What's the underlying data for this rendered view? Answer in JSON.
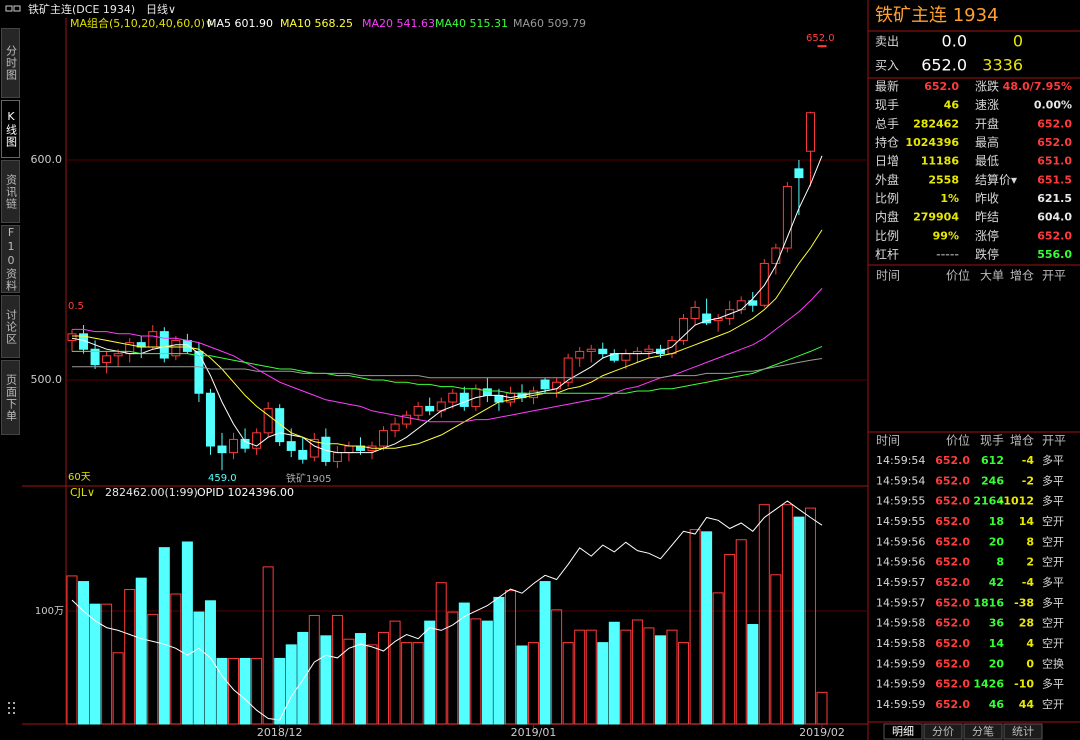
{
  "window": {
    "title": "铁矿主连(DCE 1934)",
    "period": "日线∨"
  },
  "side_tabs": [
    "分时图",
    "K线图",
    "资讯链",
    "F10资料",
    "讨论区",
    "页面下单"
  ],
  "chart_data": [
    {
      "type": "candlestick",
      "legend_title": "MA组合(5,10,20,40,60,0)∨",
      "up_color": "#ff3a3a",
      "down_color": "#54ffff",
      "ylim": [
        453.2,
        659.1
      ],
      "yticks": [
        {
          "value": 600,
          "label": "600.0"
        },
        {
          "value": 500,
          "label": "500.0"
        }
      ],
      "annotations": [
        "652.0",
        "459.0",
        "0.5",
        "60天",
        "铁矿1905"
      ],
      "open": [
        518,
        521,
        514,
        508,
        511,
        512,
        517,
        515,
        522,
        511,
        518,
        513,
        494,
        470,
        467,
        473,
        469,
        476,
        487,
        472,
        468,
        465,
        474,
        463,
        467,
        470,
        468,
        470,
        477,
        480,
        484,
        488,
        486,
        490,
        494,
        488,
        496,
        493,
        490,
        494,
        492,
        500,
        496,
        499,
        510,
        513,
        514,
        512,
        509,
        512,
        513,
        514,
        512,
        518,
        528,
        530,
        527,
        528,
        532,
        536,
        534,
        553,
        560,
        596,
        604,
        652
      ],
      "high": [
        523,
        525,
        518,
        513,
        514,
        519,
        520,
        525,
        524,
        520,
        521,
        517,
        496,
        476,
        476,
        478,
        478,
        490,
        489,
        478,
        474,
        476,
        478,
        470,
        472,
        474,
        472,
        479,
        483,
        486,
        490,
        492,
        492,
        496,
        497,
        498,
        501,
        496,
        497,
        498,
        497,
        501,
        501,
        512,
        515,
        516,
        517,
        514,
        514,
        515,
        516,
        516,
        520,
        530,
        536,
        537,
        530,
        536,
        538,
        540,
        555,
        562,
        590,
        600,
        622,
        652
      ],
      "low": [
        513,
        512,
        505,
        503,
        506,
        508,
        510,
        514,
        508,
        509,
        512,
        490,
        466,
        459,
        464,
        467,
        466,
        474,
        470,
        465,
        462,
        463,
        461,
        460,
        463,
        466,
        464,
        468,
        474,
        478,
        482,
        484,
        483,
        487,
        486,
        486,
        490,
        486,
        488,
        490,
        489,
        494,
        492,
        497,
        506,
        508,
        510,
        508,
        505,
        508,
        510,
        510,
        510,
        516,
        525,
        525,
        522,
        525,
        530,
        531,
        533,
        548,
        558,
        575,
        588,
        651
      ],
      "close": [
        521,
        514,
        507,
        511,
        512,
        517,
        515,
        522,
        510,
        518,
        513,
        494,
        470,
        467,
        473,
        469,
        476,
        487,
        472,
        468,
        464,
        473,
        463,
        467,
        470,
        468,
        470,
        477,
        480,
        484,
        488,
        486,
        490,
        494,
        488,
        496,
        493,
        490,
        494,
        492,
        495,
        496,
        499,
        510,
        513,
        514,
        512,
        509,
        512,
        513,
        514,
        512,
        518,
        528,
        533,
        526,
        528,
        532,
        536,
        534,
        553,
        560,
        588,
        592,
        621.5,
        652
      ],
      "series": [
        {
          "name": "MA5 601.90",
          "color": "#ffffff",
          "values": [
            519,
            518,
            516,
            514,
            513,
            512,
            512,
            514,
            515,
            516,
            516,
            512,
            502,
            490,
            480,
            472,
            470,
            474,
            476,
            475,
            474,
            470,
            468,
            467,
            467,
            467,
            467,
            469,
            471,
            474,
            478,
            482,
            486,
            488,
            490,
            492,
            493,
            493,
            492,
            493,
            494,
            495,
            496,
            500,
            503,
            506,
            510,
            512,
            512,
            512,
            512,
            513,
            515,
            520,
            525,
            527,
            528,
            530,
            532,
            537,
            543,
            552,
            565,
            578,
            589,
            601.9
          ]
        },
        {
          "name": "MA10 568.25",
          "color": "#ffff3c",
          "values": [
            520,
            520,
            519,
            518,
            517,
            516,
            515,
            515,
            515,
            515,
            515,
            514,
            510,
            505,
            499,
            493,
            488,
            484,
            480,
            476,
            474,
            472,
            471,
            471,
            470,
            470,
            469,
            469,
            469,
            470,
            471,
            473,
            475,
            478,
            481,
            484,
            487,
            490,
            491,
            492,
            493,
            494,
            494,
            496,
            497,
            499,
            502,
            504,
            506,
            508,
            510,
            511,
            512,
            514,
            516,
            518,
            520,
            522,
            525,
            528,
            532,
            537,
            545,
            553,
            560,
            568.25
          ]
        },
        {
          "name": "MA20 541.63",
          "color": "#ff3cff",
          "values": [
            523,
            523,
            522,
            522,
            521,
            521,
            520,
            520,
            519,
            519,
            518,
            517,
            515,
            513,
            511,
            508,
            505,
            502,
            499,
            497,
            495,
            493,
            491,
            490,
            489,
            488,
            486,
            485,
            484,
            483,
            482,
            481,
            481,
            481,
            481,
            482,
            482,
            483,
            484,
            485,
            486,
            487,
            488,
            489,
            490,
            491,
            492,
            494,
            496,
            497,
            499,
            501,
            502,
            504,
            506,
            508,
            510,
            512,
            514,
            516,
            519,
            523,
            527,
            531,
            536,
            541.63
          ]
        },
        {
          "name": "MA40 515.31",
          "color": "#3cff3c",
          "values": [
            513,
            513,
            513,
            513,
            513,
            513,
            512,
            512,
            512,
            512,
            512,
            511,
            511,
            510,
            509,
            508,
            507,
            506,
            505,
            505,
            504,
            503,
            503,
            502,
            502,
            501,
            500,
            500,
            499,
            499,
            498,
            498,
            497,
            497,
            496,
            496,
            495,
            495,
            494,
            494,
            494,
            494,
            494,
            494,
            494,
            494,
            494,
            494,
            494,
            495,
            495,
            496,
            496,
            497,
            498,
            499,
            500,
            501,
            502,
            503,
            505,
            507,
            509,
            511,
            513,
            515.31
          ]
        },
        {
          "name": "MA60 509.79",
          "color": "#9a9a9a",
          "values": [
            506,
            506,
            506,
            506,
            506,
            506,
            506,
            506,
            506,
            506,
            506,
            506,
            505,
            505,
            505,
            505,
            504,
            504,
            504,
            504,
            503,
            503,
            503,
            503,
            503,
            502,
            502,
            502,
            502,
            502,
            502,
            501,
            501,
            501,
            501,
            501,
            501,
            501,
            501,
            501,
            501,
            501,
            501,
            501,
            501,
            501,
            501,
            501,
            501,
            501,
            501,
            501,
            502,
            502,
            502,
            503,
            503,
            503,
            504,
            504,
            505,
            506,
            507,
            508,
            509,
            509.79
          ]
        }
      ]
    },
    {
      "type": "bar",
      "title": "CJL∨",
      "subtitle": "282462.00(1:99)",
      "categories": [
        null,
        null,
        null,
        null,
        null,
        null,
        null,
        null,
        null,
        null,
        null,
        null,
        null,
        null,
        null,
        null,
        null,
        null,
        "2018/12",
        null,
        null,
        null,
        null,
        null,
        null,
        null,
        null,
        null,
        null,
        null,
        null,
        null,
        null,
        null,
        null,
        null,
        null,
        null,
        null,
        null,
        "2019/01",
        null,
        null,
        null,
        null,
        null,
        null,
        null,
        null,
        null,
        null,
        null,
        null,
        null,
        null,
        null,
        null,
        null,
        null,
        null,
        null,
        null,
        null,
        null,
        null,
        "2019/02"
      ],
      "values": [
        1310000,
        1260000,
        1060000,
        1060000,
        630000,
        1190000,
        1290000,
        970000,
        1560000,
        1150000,
        1610000,
        990000,
        1090000,
        580000,
        580000,
        580000,
        580000,
        1390000,
        580000,
        700000,
        810000,
        960000,
        780000,
        960000,
        750000,
        800000,
        700000,
        810000,
        910000,
        720000,
        720000,
        910000,
        1250000,
        990000,
        1070000,
        930000,
        910000,
        1120000,
        1180000,
        690000,
        720000,
        1260000,
        1010000,
        720000,
        830000,
        830000,
        720000,
        900000,
        830000,
        920000,
        850000,
        780000,
        830000,
        720000,
        1720000,
        1700000,
        1160000,
        1500000,
        1630000,
        880000,
        1940000,
        1320000,
        1940000,
        1830000,
        1910000,
        280000
      ],
      "ylim": [
        0,
        2070000
      ],
      "yticks": [
        {
          "value": 1000000,
          "label": "100万"
        }
      ],
      "y2lim": [
        880000,
        1050000
      ],
      "series": [
        {
          "name": "OPID 1024396.00",
          "color": "#ffffff",
          "axis": "y2",
          "values": [
            970000,
            962000,
            955000,
            950000,
            948000,
            945000,
            942000,
            940000,
            938000,
            935000,
            930000,
            935000,
            928000,
            915000,
            905000,
            898000,
            890000,
            884000,
            883000,
            900000,
            912000,
            925000,
            930000,
            928000,
            935000,
            938000,
            936000,
            933000,
            940000,
            945000,
            942000,
            950000,
            948000,
            952000,
            958000,
            962000,
            966000,
            972000,
            978000,
            975000,
            982000,
            988000,
            985000,
            996000,
            1008000,
            1002000,
            1010000,
            1005000,
            1012000,
            1006000,
            1004000,
            1000000,
            1010000,
            1020000,
            1018000,
            1030000,
            1028000,
            1022000,
            1026000,
            1020000,
            1030000,
            1036000,
            1042000,
            1036000,
            1030000,
            1024396
          ]
        }
      ]
    }
  ],
  "quote": {
    "title": "铁矿主连 1934",
    "sell": {
      "label": "卖出",
      "price": "0.0",
      "volume": "0"
    },
    "buy": {
      "label": "买入",
      "price": "652.0",
      "volume": "3336"
    },
    "rows": [
      [
        "最新",
        "652.0",
        "涨跌",
        "48.0/7.95%"
      ],
      [
        "现手",
        "46",
        "速涨",
        "0.00%"
      ],
      [
        "总手",
        "282462",
        "开盘",
        "652.0"
      ],
      [
        "持仓",
        "1024396",
        "最高",
        "652.0"
      ],
      [
        "日增",
        "11186",
        "最低",
        "651.0"
      ],
      [
        "外盘",
        "2558",
        "结算价▾",
        "651.5"
      ],
      [
        "比例",
        "1%",
        "昨收",
        "621.5"
      ],
      [
        "内盘",
        "279904",
        "昨结",
        "604.0"
      ],
      [
        "比例",
        "99%",
        "涨停",
        "652.0"
      ],
      [
        "杠杆",
        "-----",
        "跌停",
        "556.0"
      ]
    ],
    "big_orders": {
      "header": [
        "时间",
        "价位",
        "大单",
        "增仓",
        "开平"
      ]
    },
    "ticks": {
      "header": [
        "时间",
        "价位",
        "现手",
        "增仓",
        "开平"
      ],
      "rows": [
        [
          "14:59:54",
          "652.0",
          "612",
          "-4",
          "多平"
        ],
        [
          "14:59:54",
          "652.0",
          "246",
          "-2",
          "多平"
        ],
        [
          "14:59:55",
          "652.0",
          "2164",
          "-1012",
          "多平"
        ],
        [
          "14:59:55",
          "652.0",
          "18",
          "14",
          "空开"
        ],
        [
          "14:59:56",
          "652.0",
          "20",
          "8",
          "空开"
        ],
        [
          "14:59:56",
          "652.0",
          "8",
          "2",
          "空开"
        ],
        [
          "14:59:57",
          "652.0",
          "42",
          "-4",
          "多平"
        ],
        [
          "14:59:57",
          "652.0",
          "1816",
          "-38",
          "多平"
        ],
        [
          "14:59:58",
          "652.0",
          "36",
          "28",
          "空开"
        ],
        [
          "14:59:58",
          "652.0",
          "14",
          "4",
          "空开"
        ],
        [
          "14:59:59",
          "652.0",
          "20",
          "0",
          "空换"
        ],
        [
          "14:59:59",
          "652.0",
          "1426",
          "-10",
          "多平"
        ],
        [
          "14:59:59",
          "652.0",
          "46",
          "44",
          "空开"
        ]
      ]
    },
    "tabs": [
      "明细",
      "分价",
      "分笔",
      "统计"
    ]
  }
}
